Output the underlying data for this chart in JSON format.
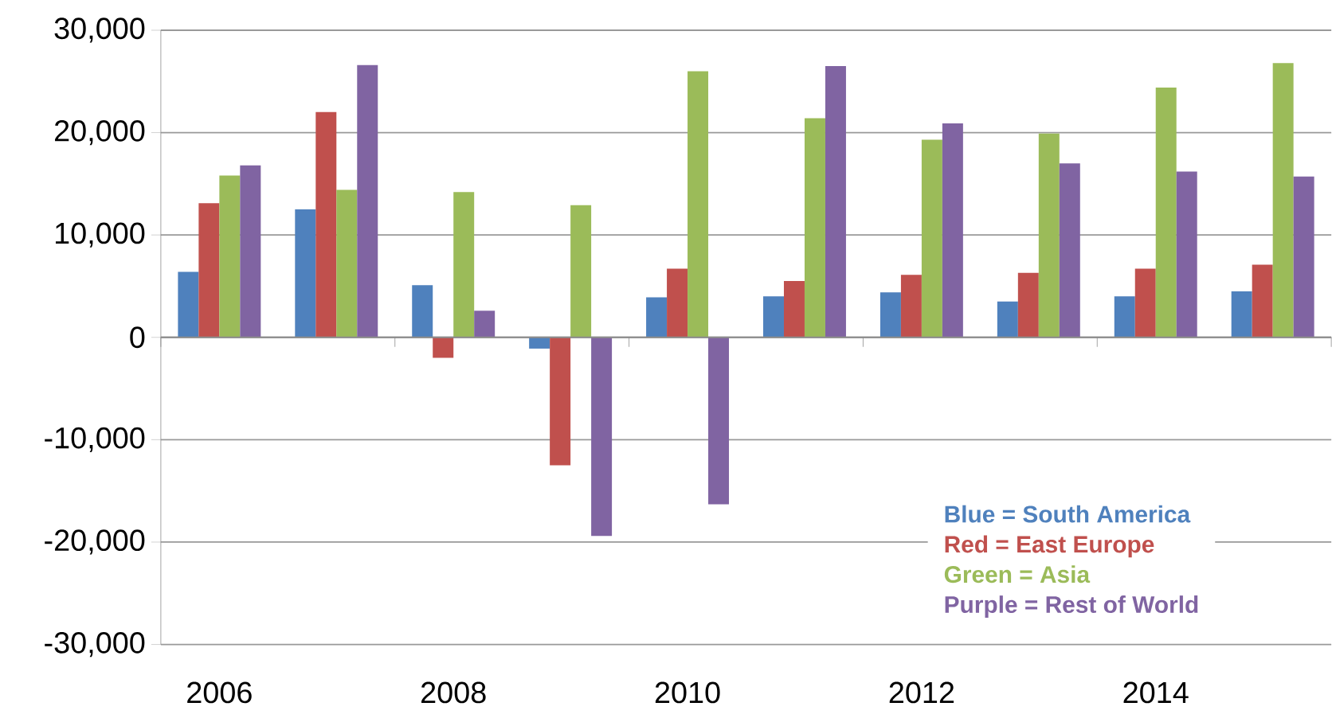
{
  "chart_data": {
    "type": "bar",
    "categories": [
      "2006",
      null,
      "2008",
      null,
      "2010",
      null,
      "2012",
      null,
      "2014",
      null
    ],
    "series": [
      {
        "name": "Blue = South America",
        "color": "#4f81bd",
        "values": [
          6400,
          12500,
          5100,
          -1100,
          3900,
          4000,
          4400,
          3500,
          4000,
          4500
        ]
      },
      {
        "name": "Red = East Europe",
        "color": "#c0504d",
        "values": [
          13100,
          22000,
          -2000,
          -12500,
          6700,
          5500,
          6100,
          6300,
          6700,
          7100
        ]
      },
      {
        "name": "Green = Asia",
        "color": "#9bbb59",
        "values": [
          15800,
          14400,
          14200,
          12900,
          26000,
          21400,
          19300,
          19900,
          24400,
          26800
        ]
      },
      {
        "name": "Purple = Rest of World",
        "color": "#8064a2",
        "values": [
          16800,
          26600,
          2600,
          -19400,
          -16300,
          26500,
          20900,
          17000,
          16200,
          15700
        ]
      }
    ],
    "ylim": [
      -30000,
      30000
    ],
    "yticks": [
      {
        "value": -30000,
        "label": "-30,000"
      },
      {
        "value": -20000,
        "label": "-20,000"
      },
      {
        "value": -10000,
        "label": "-10,000"
      },
      {
        "value": 0,
        "label": "0"
      },
      {
        "value": 10000,
        "label": "10,000"
      },
      {
        "value": 20000,
        "label": "20,000"
      },
      {
        "value": 30000,
        "label": "30,000"
      }
    ],
    "grid": "y",
    "legend": "bottom right"
  }
}
